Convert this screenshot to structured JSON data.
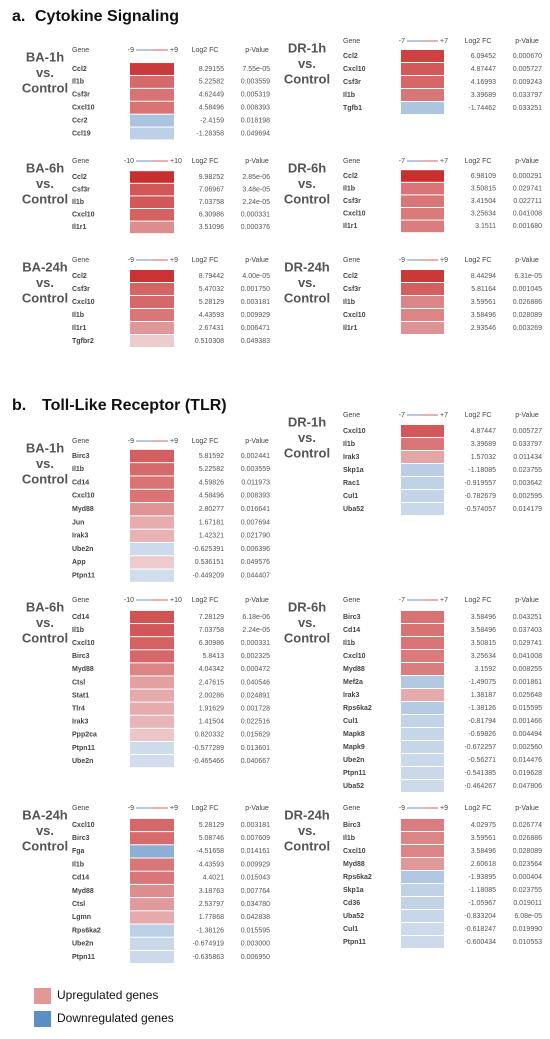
{
  "sections": [
    {
      "label": "a.",
      "title": "Cytokine Signaling",
      "panels": [
        {
          "label": [
            "BA-1h",
            "vs.",
            "Control"
          ],
          "headers": [
            "Gene",
            "Log2 FC",
            "p-Value"
          ],
          "scale": [
            -9,
            {
              "value": 9,
              "label": "+9"
            }
          ],
          "rows": [
            [
              "Ccl2",
              8.29155,
              "7.55e-05"
            ],
            [
              "Il1b",
              5.22582,
              "0.003559"
            ],
            [
              "Csf3r",
              4.62449,
              "0.005319"
            ],
            [
              "Cxcl10",
              4.58496,
              "0.008393"
            ],
            [
              "Ccr2",
              -2.4159,
              "0.018198"
            ],
            [
              "Ccl19",
              -1.28358,
              "0.049694"
            ]
          ]
        },
        {
          "label": [
            "DR-1h",
            "vs.",
            "Control"
          ],
          "headers": [
            "Gene",
            "Log2 FC",
            "p-Value"
          ],
          "scale": [
            -7,
            {
              "value": 7,
              "label": "+7"
            }
          ],
          "rows": [
            [
              "Ccl2",
              6.09452,
              "0.000670"
            ],
            [
              "Cxcl10",
              4.87447,
              "0.005727"
            ],
            [
              "Csf3r",
              4.16993,
              "0.009243"
            ],
            [
              "Il1b",
              3.39689,
              "0.033797"
            ],
            [
              "Tgfb1",
              -1.74462,
              "0.033251"
            ]
          ]
        },
        {
          "label": [
            "BA-6h",
            "vs.",
            "Control"
          ],
          "headers": [
            "Gene",
            "Log2 FC",
            "p-Value"
          ],
          "scale": [
            -10,
            {
              "value": 10,
              "label": "+10"
            }
          ],
          "rows": [
            [
              "Ccl2",
              9.98252,
              "2.85e-06"
            ],
            [
              "Csf3r",
              7.06967,
              "3.48e-05"
            ],
            [
              "Il1b",
              7.03758,
              "2.24e-05"
            ],
            [
              "Cxcl10",
              6.30986,
              "0.000331"
            ],
            [
              "Il1r1",
              3.51096,
              "0.000376"
            ]
          ]
        },
        {
          "label": [
            "DR-6h",
            "vs.",
            "Control"
          ],
          "headers": [
            "Gene",
            "Log2 FC",
            "p-Value"
          ],
          "scale": [
            -7,
            {
              "value": 7,
              "label": "+7"
            }
          ],
          "rows": [
            [
              "Ccl2",
              6.98109,
              "0.000291"
            ],
            [
              "Il1b",
              3.50815,
              "0.029741"
            ],
            [
              "Csf3r",
              3.41504,
              "0.022711"
            ],
            [
              "Cxcl10",
              3.25634,
              "0.041008"
            ],
            [
              "Il1r1",
              3.1511,
              "0.001680"
            ]
          ]
        },
        {
          "label": [
            "BA-24h",
            "vs.",
            "Control"
          ],
          "headers": [
            "Gene",
            "Log2 FC",
            "p-Value"
          ],
          "scale": [
            -9,
            {
              "value": 9,
              "label": "+9"
            }
          ],
          "rows": [
            [
              "Ccl2",
              8.79442,
              "4.00e-05"
            ],
            [
              "Csf3r",
              5.47032,
              "0.001750"
            ],
            [
              "Cxcl10",
              5.28129,
              "0.003181"
            ],
            [
              "Il1b",
              4.43593,
              "0.009929"
            ],
            [
              "Il1r1",
              2.67431,
              "0.006471"
            ],
            [
              "Tgfbr2",
              0.510308,
              "0.049383"
            ]
          ]
        },
        {
          "label": [
            "DR-24h",
            "vs.",
            "Control"
          ],
          "headers": [
            "Gene",
            "Log2 FC",
            "p-Value"
          ],
          "scale": [
            -9,
            {
              "value": 9,
              "label": "+9"
            }
          ],
          "rows": [
            [
              "Ccl2",
              8.44294,
              "6.31e-05"
            ],
            [
              "Csf3r",
              5.81164,
              "0.001045"
            ],
            [
              "Il1b",
              3.59561,
              "0.026886"
            ],
            [
              "Cxcl10",
              3.58496,
              "0.028089"
            ],
            [
              "Il1r1",
              2.93546,
              "0.003269"
            ]
          ]
        }
      ]
    },
    {
      "label": "b.",
      "title": "Toll-Like Receptor (TLR)",
      "panels": [
        {
          "label": [
            "BA-1h",
            "vs.",
            "Control"
          ],
          "headers": [
            "Gene",
            "Log2 FC",
            "p-Value"
          ],
          "scale": [
            -9,
            {
              "value": 9,
              "label": "+9"
            }
          ],
          "rows": [
            [
              "Birc3",
              5.81592,
              "0.002441"
            ],
            [
              "Il1b",
              5.22582,
              "0.003559"
            ],
            [
              "Cd14",
              4.59826,
              "0.011973"
            ],
            [
              "Cxcl10",
              4.58496,
              "0.008393"
            ],
            [
              "Myd88",
              2.80277,
              "0.016641"
            ],
            [
              "Jun",
              1.67181,
              "0.007694"
            ],
            [
              "Irak3",
              1.42321,
              "0.021790"
            ],
            [
              "Ube2n",
              -0.625391,
              "0.006396"
            ],
            [
              "App",
              0.536151,
              "0.049576"
            ],
            [
              "Ptpn11",
              -0.449209,
              "0.044407"
            ]
          ]
        },
        {
          "label": [
            "DR-1h",
            "vs.",
            "Control"
          ],
          "headers": [
            "Gene",
            "Log2 FC",
            "p-Value"
          ],
          "scale": [
            -7,
            {
              "value": 7,
              "label": "+7"
            }
          ],
          "rows": [
            [
              "Cxcl10",
              4.87447,
              "0.005727"
            ],
            [
              "Il1b",
              3.39689,
              "0.033797"
            ],
            [
              "Irak3",
              1.57032,
              "0.011434"
            ],
            [
              "Skp1a",
              -1.18085,
              "0.023755"
            ],
            [
              "Rac1",
              -0.919557,
              "0.003642"
            ],
            [
              "Cul1",
              -0.782679,
              "0.002595"
            ],
            [
              "Uba52",
              -0.574057,
              "0.014179"
            ]
          ]
        },
        {
          "label": [
            "BA-6h",
            "vs.",
            "Control"
          ],
          "headers": [
            "Gene",
            "Log2 FC",
            "p-Value"
          ],
          "scale": [
            -10,
            {
              "value": 10,
              "label": "+10"
            }
          ],
          "rows": [
            [
              "Cd14",
              7.28129,
              "6.18e-06"
            ],
            [
              "Il1b",
              7.03758,
              "2.24e-05"
            ],
            [
              "Cxcl10",
              6.30986,
              "0.000331"
            ],
            [
              "Birc3",
              5.8413,
              "0.002325"
            ],
            [
              "Myd88",
              4.04342,
              "0.000472"
            ],
            [
              "Ctsl",
              2.47615,
              "0.040546"
            ],
            [
              "Stat1",
              2.00286,
              "0.024891"
            ],
            [
              "Tlr4",
              1.91629,
              "0.001728"
            ],
            [
              "Irak3",
              1.41504,
              "0.022516"
            ],
            [
              "Ppp2ca",
              0.820332,
              "0.015629"
            ],
            [
              "Ptpn11",
              -0.577289,
              "0.013601"
            ],
            [
              "Ube2n",
              -0.465466,
              "0.040667"
            ]
          ]
        },
        {
          "label": [
            "DR-6h",
            "vs.",
            "Control"
          ],
          "headers": [
            "Gene",
            "Log2 FC",
            "p-Value"
          ],
          "scale": [
            -7,
            {
              "value": 7,
              "label": "+7"
            }
          ],
          "rows": [
            [
              "Birc3",
              3.58496,
              "0.043251"
            ],
            [
              "Cd14",
              3.58496,
              "0.037403"
            ],
            [
              "Il1b",
              3.50815,
              "0.029741"
            ],
            [
              "Cxcl10",
              3.25634,
              "0.041008"
            ],
            [
              "Myd88",
              3.1592,
              "0.008255"
            ],
            [
              "Mef2a",
              -1.49075,
              "0.001861"
            ],
            [
              "Irak3",
              1.38187,
              "0.025648"
            ],
            [
              "Rps6ka2",
              -1.38126,
              "0.015595"
            ],
            [
              "Cul1",
              -0.81794,
              "0.001466"
            ],
            [
              "Mapk8",
              -0.69826,
              "0.004494"
            ],
            [
              "Mapk9",
              -0.672257,
              "0.002560"
            ],
            [
              "Ube2n",
              -0.56271,
              "0.014476"
            ],
            [
              "Ptpn11",
              -0.541385,
              "0.019628"
            ],
            [
              "Uba52",
              -0.464267,
              "0.047806"
            ]
          ]
        },
        {
          "label": [
            "BA-24h",
            "vs.",
            "Control"
          ],
          "headers": [
            "Gene",
            "Log2 FC",
            "p-Value"
          ],
          "scale": [
            -9,
            {
              "value": 9,
              "label": "+9"
            }
          ],
          "rows": [
            [
              "Cxcl10",
              5.28129,
              "0.003181"
            ],
            [
              "Birc3",
              5.08746,
              "0.007609"
            ],
            [
              "Fga",
              -4.51658,
              "0.014161"
            ],
            [
              "Il1b",
              4.43593,
              "0.009929"
            ],
            [
              "Cd14",
              4.4021,
              "0.015043"
            ],
            [
              "Myd88",
              3.18763,
              "0.007764"
            ],
            [
              "Ctsl",
              2.53797,
              "0.034780"
            ],
            [
              "Lgmn",
              1.77868,
              "0.042838"
            ],
            [
              "Rps6ka2",
              -1.38126,
              "0.015595"
            ],
            [
              "Ube2n",
              -0.674919,
              "0.003000"
            ],
            [
              "Ptpn11",
              -0.635863,
              "0.006950"
            ]
          ]
        },
        {
          "label": [
            "DR-24h",
            "vs.",
            "Control"
          ],
          "headers": [
            "Gene",
            "Log2 FC",
            "p-Value"
          ],
          "scale": [
            -9,
            {
              "value": 9,
              "label": "+9"
            }
          ],
          "rows": [
            [
              "Birc3",
              4.02975,
              "0.026774"
            ],
            [
              "Il1b",
              3.59561,
              "0.026886"
            ],
            [
              "Cxcl10",
              3.58496,
              "0.028089"
            ],
            [
              "Myd88",
              2.60618,
              "0.023564"
            ],
            [
              "Rps6ka2",
              -1.93895,
              "0.000404"
            ],
            [
              "Skp1a",
              -1.18085,
              "0.023755"
            ],
            [
              "Cd36",
              -1.05967,
              "0.019011"
            ],
            [
              "Uba52",
              -0.833204,
              "6.08e-05"
            ],
            [
              "Cul1",
              -0.618247,
              "0.019990"
            ],
            [
              "Ptpn11",
              -0.600434,
              "0.010553"
            ]
          ]
        }
      ]
    }
  ],
  "legend": [
    {
      "label": "Upregulated genes",
      "color": "#e39797"
    },
    {
      "label": "Downregulated genes",
      "color": "#5b8fc4"
    }
  ]
}
